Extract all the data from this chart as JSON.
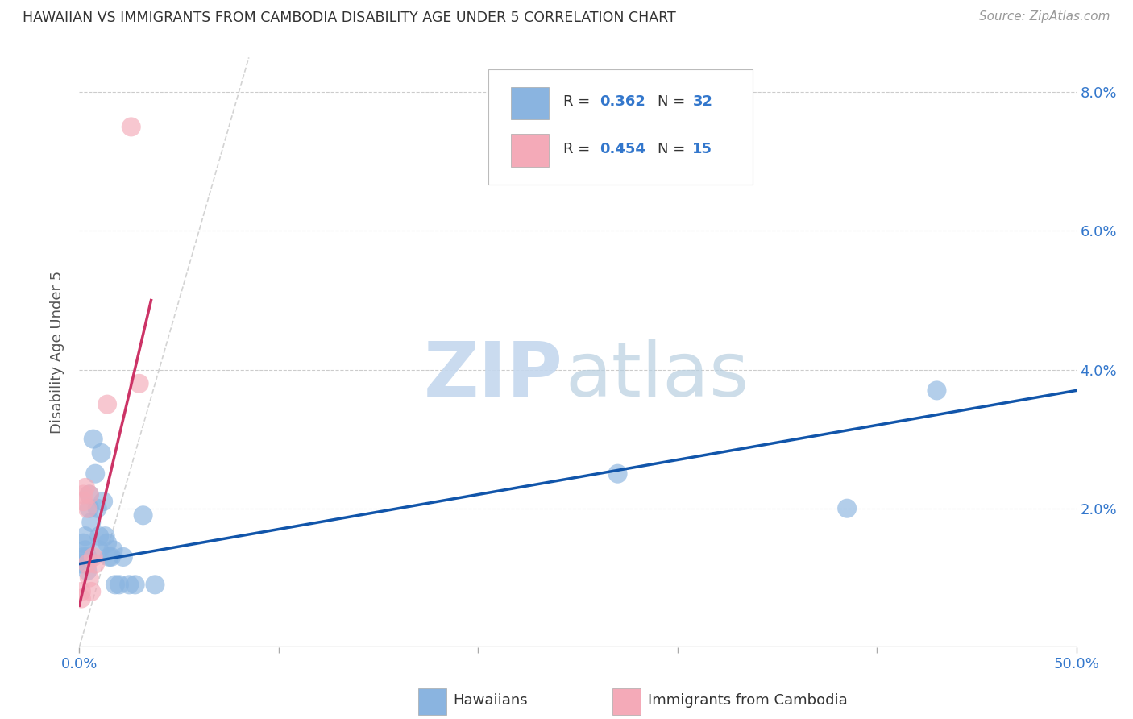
{
  "title": "HAWAIIAN VS IMMIGRANTS FROM CAMBODIA DISABILITY AGE UNDER 5 CORRELATION CHART",
  "source": "Source: ZipAtlas.com",
  "ylabel": "Disability Age Under 5",
  "legend_hawaiians": "Hawaiians",
  "legend_cambodia": "Immigrants from Cambodia",
  "hawaiian_R": "0.362",
  "hawaiian_N": "32",
  "cambodia_R": "0.454",
  "cambodia_N": "15",
  "hawaiian_color": "#8ab4e0",
  "cambodia_color": "#f4aab8",
  "hawaiian_line_color": "#1155aa",
  "cambodia_line_color": "#cc3366",
  "diagonal_color": "#c8c8c8",
  "background_color": "#ffffff",
  "grid_color": "#cccccc",
  "hawaiian_x": [
    0.001,
    0.002,
    0.002,
    0.003,
    0.003,
    0.004,
    0.004,
    0.005,
    0.005,
    0.006,
    0.007,
    0.008,
    0.009,
    0.01,
    0.01,
    0.011,
    0.012,
    0.013,
    0.014,
    0.015,
    0.016,
    0.017,
    0.018,
    0.02,
    0.022,
    0.025,
    0.028,
    0.032,
    0.038,
    0.27,
    0.385,
    0.43
  ],
  "hawaiian_y": [
    0.012,
    0.015,
    0.013,
    0.016,
    0.014,
    0.013,
    0.011,
    0.022,
    0.02,
    0.018,
    0.03,
    0.025,
    0.02,
    0.014,
    0.016,
    0.028,
    0.021,
    0.016,
    0.015,
    0.013,
    0.013,
    0.014,
    0.009,
    0.009,
    0.013,
    0.009,
    0.009,
    0.019,
    0.009,
    0.025,
    0.02,
    0.037
  ],
  "cambodia_x": [
    0.001,
    0.001,
    0.002,
    0.002,
    0.003,
    0.004,
    0.004,
    0.005,
    0.005,
    0.006,
    0.007,
    0.008,
    0.014,
    0.026,
    0.03
  ],
  "cambodia_y": [
    0.008,
    0.007,
    0.022,
    0.021,
    0.023,
    0.02,
    0.012,
    0.022,
    0.01,
    0.008,
    0.013,
    0.012,
    0.035,
    0.075,
    0.038
  ],
  "xmin": 0.0,
  "xmax": 0.5,
  "ymin": 0.0,
  "ymax": 0.085,
  "hawaiian_line_x": [
    0.0,
    0.5
  ],
  "hawaiian_line_y": [
    0.012,
    0.037
  ],
  "cambodia_line_x": [
    0.0,
    0.036
  ],
  "cambodia_line_y": [
    0.006,
    0.05
  ]
}
